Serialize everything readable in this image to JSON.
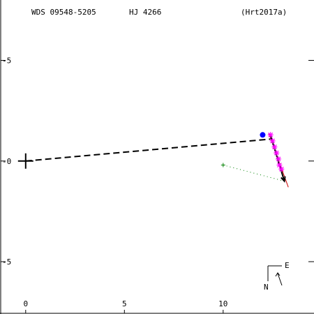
{
  "header": {
    "wds": "WDS 09548-5205",
    "disc": "HJ 4266",
    "ref": "(Hrt2017a)"
  },
  "chart_data": {
    "type": "scatter",
    "xlim": [
      -1.3,
      14.6
    ],
    "ylim": [
      -7.6,
      8.0
    ],
    "x_ticks": [
      {
        "value": 0,
        "label": "0"
      },
      {
        "value": 5,
        "label": "5"
      },
      {
        "value": 10,
        "label": "10"
      }
    ],
    "y_ticks": [
      {
        "value": 5,
        "label": "-5"
      },
      {
        "value": 0,
        "label": "-0"
      },
      {
        "value": -5,
        "label": "-5"
      }
    ],
    "primary": {
      "x": 0,
      "y": 0
    },
    "orbit_line": [
      [
        0,
        0
      ],
      [
        12.5,
        1.1
      ]
    ],
    "ephemeris_position": {
      "x": 12.0,
      "y": 1.3,
      "color": "#0000ff"
    },
    "measurements": [
      {
        "x": 12.4,
        "y": 1.3
      },
      {
        "x": 12.5,
        "y": 1.0
      },
      {
        "x": 12.6,
        "y": 0.7
      },
      {
        "x": 12.7,
        "y": 0.4
      },
      {
        "x": 12.8,
        "y": 0.1
      },
      {
        "x": 12.85,
        "y": -0.2
      },
      {
        "x": 12.95,
        "y": -0.4
      }
    ],
    "motion_arrow": [
      [
        12.4,
        1.25
      ],
      [
        13.1,
        -1.0
      ]
    ],
    "residual_trend": [
      [
        12.3,
        1.4
      ],
      [
        13.3,
        -1.3
      ]
    ],
    "first_observation": {
      "x": 10.0,
      "y": -0.2
    },
    "first_observation_link": [
      [
        10.0,
        -0.2
      ],
      [
        13.1,
        -1.0
      ]
    ],
    "colors": {
      "axes": "#000000",
      "orbit": "#000000",
      "measurement": "#ff00ff",
      "trend": "#cc0000",
      "first_observation": "#008000"
    },
    "compass": {
      "north_label": "N",
      "east_label": "E"
    }
  }
}
